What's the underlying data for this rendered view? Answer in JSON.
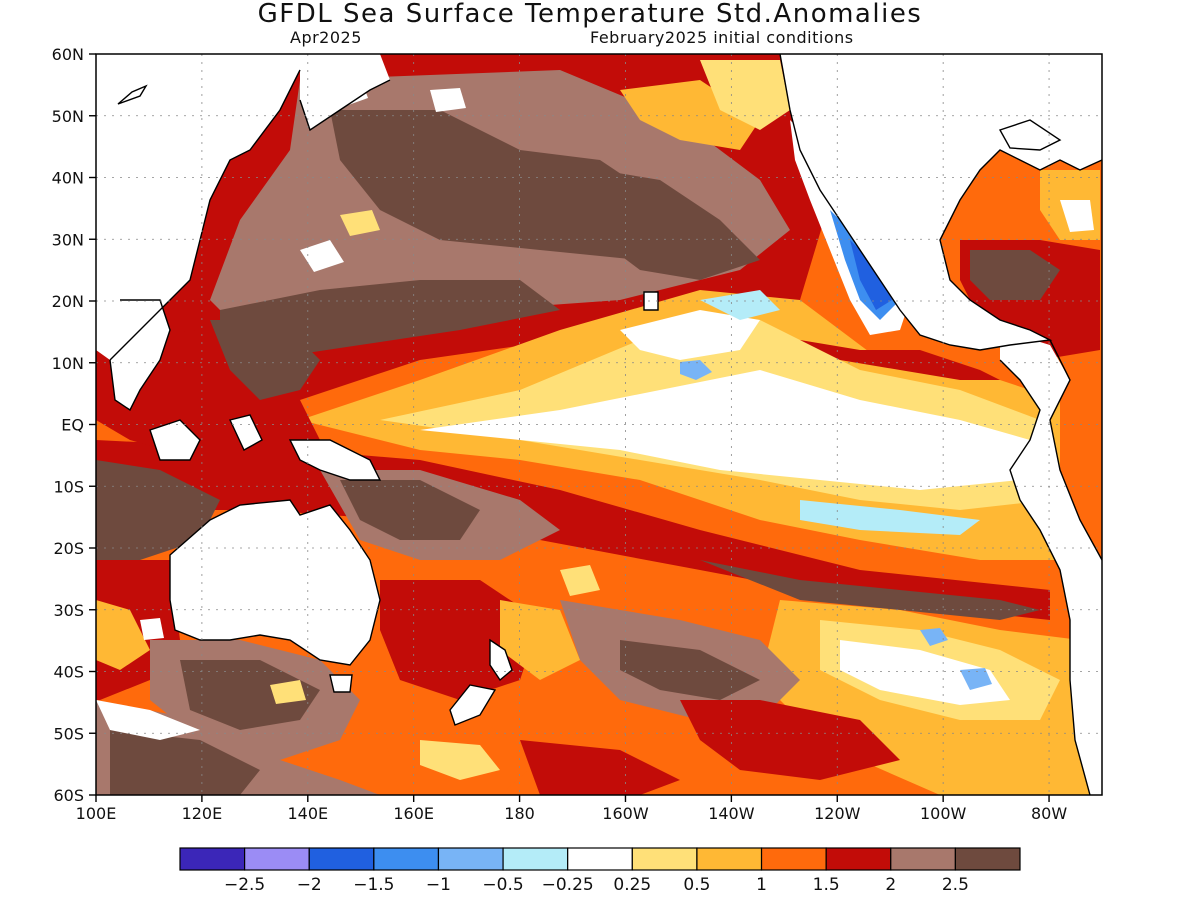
{
  "title": "GFDL Sea Surface Temperature Std.Anomalies",
  "subtitle_left": "Apr2025",
  "subtitle_right": "February2025 initial conditions",
  "map": {
    "lon_min": 100,
    "lon_max": 290,
    "lat_min": -60,
    "lat_max": 60,
    "lat_ticks": [
      {
        "value": 60,
        "label": "60N"
      },
      {
        "value": 50,
        "label": "50N"
      },
      {
        "value": 40,
        "label": "40N"
      },
      {
        "value": 30,
        "label": "30N"
      },
      {
        "value": 20,
        "label": "20N"
      },
      {
        "value": 10,
        "label": "10N"
      },
      {
        "value": 0,
        "label": "EQ"
      },
      {
        "value": -10,
        "label": "10S"
      },
      {
        "value": -20,
        "label": "20S"
      },
      {
        "value": -30,
        "label": "30S"
      },
      {
        "value": -40,
        "label": "40S"
      },
      {
        "value": -50,
        "label": "50S"
      },
      {
        "value": -60,
        "label": "60S"
      }
    ],
    "lon_ticks": [
      {
        "value": 100,
        "label": "100E"
      },
      {
        "value": 120,
        "label": "120E"
      },
      {
        "value": 140,
        "label": "140E"
      },
      {
        "value": 160,
        "label": "160E"
      },
      {
        "value": 180,
        "label": "180"
      },
      {
        "value": 200,
        "label": "160W"
      },
      {
        "value": 220,
        "label": "140W"
      },
      {
        "value": 240,
        "label": "120W"
      },
      {
        "value": 260,
        "label": "100W"
      },
      {
        "value": 280,
        "label": "80W"
      }
    ]
  },
  "colorbar": {
    "colors": [
      "#3b26b8",
      "#9b8cf5",
      "#2060e0",
      "#3d8ef0",
      "#78b4f6",
      "#b4ecf8",
      "#ffffff",
      "#ffe078",
      "#ffb834",
      "#ff6a0c",
      "#c20c08",
      "#a8786c",
      "#6e4a3e"
    ],
    "labels": [
      "−2.5",
      "−2",
      "−1.5",
      "−1",
      "−0.5",
      "−0.25",
      "0.25",
      "0.5",
      "1",
      "1.5",
      "2",
      "2.5"
    ]
  }
}
